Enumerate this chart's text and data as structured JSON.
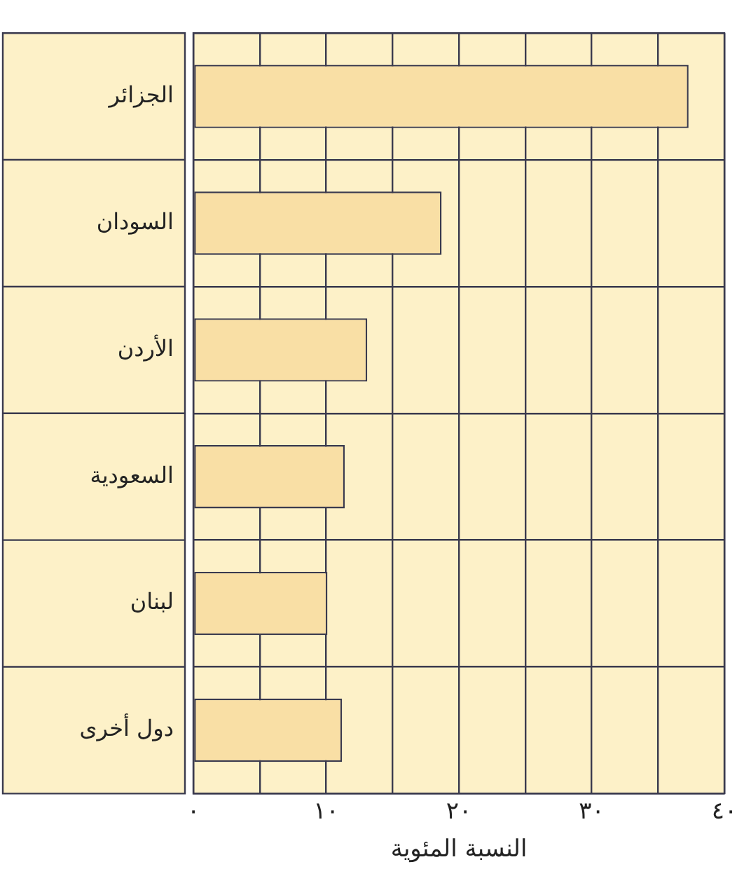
{
  "chart_data": {
    "type": "bar",
    "orientation": "horizontal",
    "xlabel": "النسبة المئوية",
    "categories": [
      "الجزائر",
      "السودان",
      "الأردن",
      "السعودية",
      "لبنان",
      "دول أخرى"
    ],
    "values": [
      37.3,
      18.7,
      13.1,
      11.4,
      10.1,
      11.2
    ],
    "color": "#f9dfa5",
    "xlim": [
      0,
      40
    ],
    "xticks": [
      {
        "value": 0,
        "label": "٠"
      },
      {
        "value": 5,
        "label": null
      },
      {
        "value": 10,
        "label": "١٠"
      },
      {
        "value": 15,
        "label": null
      },
      {
        "value": 20,
        "label": "٢٠"
      },
      {
        "value": 25,
        "label": null
      },
      {
        "value": 30,
        "label": "٣٠"
      },
      {
        "value": 35,
        "label": null
      },
      {
        "value": 40,
        "label": "٤٠"
      }
    ],
    "grid": true
  }
}
